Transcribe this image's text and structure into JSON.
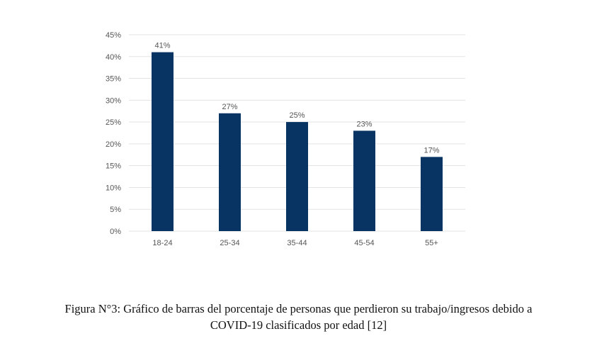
{
  "chart_data": {
    "type": "bar",
    "categories": [
      "18-24",
      "25-34",
      "35-44",
      "45-54",
      "55+"
    ],
    "values": [
      41,
      27,
      25,
      23,
      17
    ],
    "data_labels": [
      "41%",
      "27%",
      "25%",
      "23%",
      "17%"
    ],
    "ylim": [
      0,
      45
    ],
    "y_ticks": [
      0,
      5,
      10,
      15,
      20,
      25,
      30,
      35,
      40,
      45
    ],
    "y_tick_labels": [
      "0%",
      "5%",
      "10%",
      "15%",
      "20%",
      "25%",
      "30%",
      "35%",
      "40%",
      "45%"
    ],
    "grid": true,
    "legend": "none",
    "bar_color": "#073463",
    "grid_color": "#e3e3e3",
    "text_color": "#555555"
  },
  "caption": {
    "line1": "Figura N°3: Gráfico de barras del porcentaje de personas que perdieron su trabajo/ingresos debido a",
    "line2": "COVID-19 clasificados por edad [12]"
  }
}
